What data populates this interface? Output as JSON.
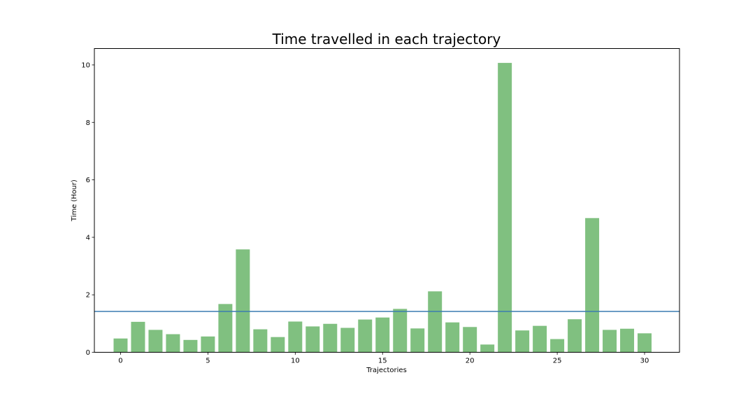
{
  "chart_data": {
    "type": "bar",
    "title": "Time travelled in each trajectory",
    "xlabel": "Trajectories",
    "ylabel": "Time (Hour)",
    "categories": [
      0,
      1,
      2,
      3,
      4,
      5,
      6,
      7,
      8,
      9,
      10,
      11,
      12,
      13,
      14,
      15,
      16,
      17,
      18,
      19,
      20,
      21,
      22,
      23,
      24,
      25,
      26,
      27,
      28,
      29,
      30
    ],
    "values": [
      0.48,
      1.06,
      0.78,
      0.63,
      0.43,
      0.55,
      1.68,
      3.58,
      0.8,
      0.53,
      1.07,
      0.9,
      0.99,
      0.85,
      1.14,
      1.21,
      1.51,
      0.83,
      2.12,
      1.04,
      0.88,
      0.27,
      10.07,
      0.76,
      0.92,
      0.46,
      1.15,
      4.67,
      0.78,
      0.82,
      0.66
    ],
    "mean_line": 1.42,
    "xlim": [
      -1.5,
      32
    ],
    "ylim": [
      0,
      10.57
    ],
    "xticks": [
      0,
      5,
      10,
      15,
      20,
      25,
      30
    ],
    "yticks": [
      0,
      2,
      4,
      6,
      8,
      10
    ],
    "colors": {
      "bar": "#80c080",
      "mean_line": "#3a7cb0"
    },
    "grid": false,
    "legend": "none"
  }
}
